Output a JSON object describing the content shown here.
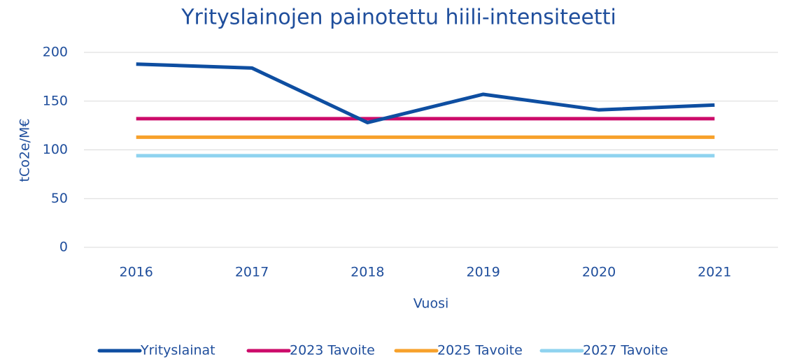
{
  "chart_data": {
    "type": "line",
    "title": "Yrityslainojen painotettu hiili-intensiteetti",
    "x_label": "Vuosi",
    "y_label": "tCo2e/M€",
    "categories": [
      "2016",
      "2017",
      "2018",
      "2019",
      "2020",
      "2021"
    ],
    "series": [
      {
        "name": "Yrityslainat",
        "color": "#0e4ea1",
        "values": [
          188,
          184,
          128,
          157,
          141,
          146
        ]
      },
      {
        "name": "2023 Tavoite",
        "color": "#cc0b6a",
        "values": [
          132,
          132,
          132,
          132,
          132,
          132
        ]
      },
      {
        "name": "2025 Tavoite",
        "color": "#f7a12b",
        "values": [
          113,
          113,
          113,
          113,
          113,
          113
        ]
      },
      {
        "name": "2027 Tavoite",
        "color": "#8fd3ef",
        "values": [
          94,
          94,
          94,
          94,
          94,
          94
        ]
      }
    ],
    "ylim": [
      0,
      200
    ],
    "yticks": [
      0,
      50,
      100,
      150,
      200
    ],
    "grid": true,
    "legend": "bottom"
  }
}
